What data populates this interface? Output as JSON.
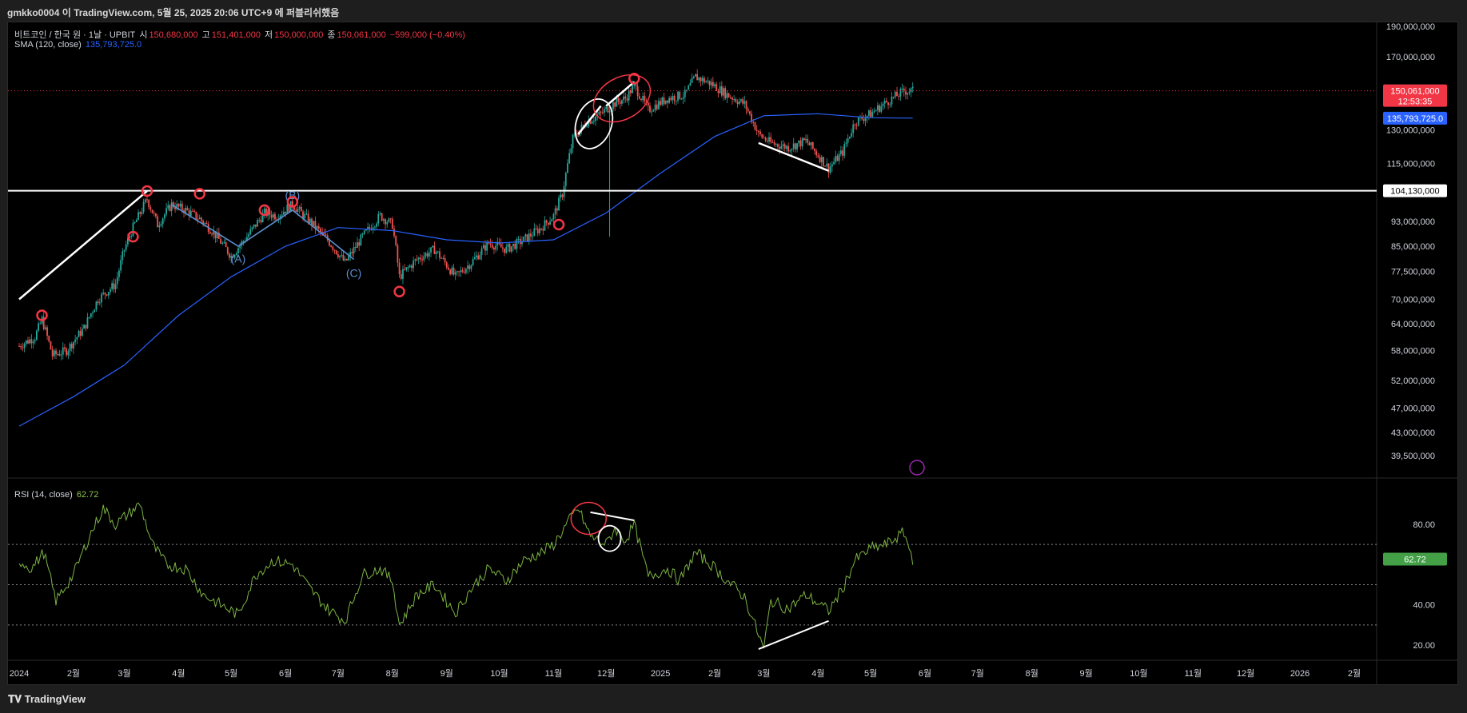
{
  "header": {
    "published_line": "gmkko0004 이 TradingView.com, 5월 25, 2025 20:06 UTC+9 에 퍼블리쉬했음"
  },
  "legend": {
    "symbol": "비트코인 / 한국 원 · 1날 · UPBIT",
    "open_label": "시",
    "open_value": "150,680,000",
    "high_label": "고",
    "high_value": "151,401,000",
    "low_label": "저",
    "low_value": "150,000,000",
    "close_label": "종",
    "close_value": "150,061,000",
    "change": "−599,000 (−0.40%)",
    "sma_label": "SMA (120, close)",
    "sma_value": "135,793,725.0",
    "rsi_label": "RSI (14, close)",
    "rsi_value": "62.72"
  },
  "price_badges": {
    "last_price": "150,061,000",
    "countdown": "12:53:35",
    "sma": "135,793,725.0",
    "hline": "104,130,000",
    "rsi": "62.72"
  },
  "footer": {
    "brand": "TradingView"
  },
  "colors": {
    "background": "#000000",
    "up_candle": "#26a69a",
    "down_candle": "#ef5350",
    "sma": "#2962ff",
    "rsi": "#7cb342",
    "marker_circles": "#f23645",
    "annotation_lines": "#ffffff",
    "wave_lines": "#5b8fd1"
  },
  "chart_data": [
    {
      "type": "candlestick",
      "title": "비트코인 / 한국 원 · 1날 · UPBIT",
      "y_scale": "log",
      "ylim": [
        37000000,
        200000000
      ],
      "y_ticks": [
        "190,000,000",
        "170,000,000",
        "130,000,000",
        "115,000,000",
        "93,000,000",
        "85,000,000",
        "77,500,000",
        "70,000,000",
        "64,000,000",
        "58,000,000",
        "52,000,000",
        "47,000,000",
        "43,000,000",
        "39,500,000"
      ],
      "x_ticks": [
        "2024",
        "2월",
        "3월",
        "4월",
        "5월",
        "6월",
        "7월",
        "8월",
        "9월",
        "10월",
        "11월",
        "12월",
        "2025",
        "2월",
        "3월",
        "4월",
        "5월",
        "6월",
        "7월",
        "8월",
        "9월",
        "10월",
        "11월",
        "12월",
        "2026",
        "2월"
      ],
      "price_path": [
        [
          "2024-01-01",
          59000000
        ],
        [
          "2024-01-10",
          61000000
        ],
        [
          "2024-01-14",
          65000000
        ],
        [
          "2024-01-20",
          57000000
        ],
        [
          "2024-01-28",
          58000000
        ],
        [
          "2024-02-07",
          63000000
        ],
        [
          "2024-02-15",
          70000000
        ],
        [
          "2024-02-25",
          74000000
        ],
        [
          "2024-03-01",
          84000000
        ],
        [
          "2024-03-06",
          91000000
        ],
        [
          "2024-03-14",
          101000000
        ],
        [
          "2024-03-20",
          92000000
        ],
        [
          "2024-03-28",
          99000000
        ],
        [
          "2024-04-05",
          97000000
        ],
        [
          "2024-04-13",
          94000000
        ],
        [
          "2024-04-20",
          90000000
        ],
        [
          "2024-05-01",
          82000000
        ],
        [
          "2024-05-10",
          88000000
        ],
        [
          "2024-05-20",
          96000000
        ],
        [
          "2024-05-27",
          95000000
        ],
        [
          "2024-06-05",
          99000000
        ],
        [
          "2024-06-15",
          93000000
        ],
        [
          "2024-06-25",
          87000000
        ],
        [
          "2024-07-05",
          80000000
        ],
        [
          "2024-07-15",
          88000000
        ],
        [
          "2024-07-25",
          95000000
        ],
        [
          "2024-08-01",
          92000000
        ],
        [
          "2024-08-05",
          76000000
        ],
        [
          "2024-08-15",
          81000000
        ],
        [
          "2024-08-25",
          84000000
        ],
        [
          "2024-09-06",
          76000000
        ],
        [
          "2024-09-15",
          80000000
        ],
        [
          "2024-09-25",
          86000000
        ],
        [
          "2024-10-05",
          84000000
        ],
        [
          "2024-10-15",
          87000000
        ],
        [
          "2024-10-25",
          91000000
        ],
        [
          "2024-11-01",
          95000000
        ],
        [
          "2024-11-06",
          103000000
        ],
        [
          "2024-11-12",
          126000000
        ],
        [
          "2024-11-20",
          134000000
        ],
        [
          "2024-11-28",
          138000000
        ],
        [
          "2024-12-05",
          143000000
        ],
        [
          "2024-12-12",
          146000000
        ],
        [
          "2024-12-17",
          153000000
        ],
        [
          "2024-12-25",
          140000000
        ],
        [
          "2025-01-05",
          146000000
        ],
        [
          "2025-01-15",
          148000000
        ],
        [
          "2025-01-21",
          158000000
        ],
        [
          "2025-01-30",
          154000000
        ],
        [
          "2025-02-08",
          148000000
        ],
        [
          "2025-02-18",
          143000000
        ],
        [
          "2025-02-26",
          128000000
        ],
        [
          "2025-03-05",
          124000000
        ],
        [
          "2025-03-15",
          122000000
        ],
        [
          "2025-03-25",
          125000000
        ],
        [
          "2025-04-07",
          113000000
        ],
        [
          "2025-04-15",
          120000000
        ],
        [
          "2025-04-22",
          134000000
        ],
        [
          "2025-05-01",
          138000000
        ],
        [
          "2025-05-10",
          144000000
        ],
        [
          "2025-05-20",
          150000000
        ],
        [
          "2025-05-25",
          150061000
        ]
      ],
      "sma_path": [
        [
          "2024-01-01",
          44000000
        ],
        [
          "2024-02-01",
          49000000
        ],
        [
          "2024-03-01",
          55000000
        ],
        [
          "2024-04-01",
          66000000
        ],
        [
          "2024-05-01",
          76000000
        ],
        [
          "2024-06-01",
          85000000
        ],
        [
          "2024-07-01",
          91000000
        ],
        [
          "2024-08-01",
          90000000
        ],
        [
          "2024-09-01",
          87000000
        ],
        [
          "2024-10-01",
          86000000
        ],
        [
          "2024-11-01",
          87000000
        ],
        [
          "2024-12-01",
          96000000
        ],
        [
          "2025-01-01",
          111000000
        ],
        [
          "2025-02-01",
          127000000
        ],
        [
          "2025-03-01",
          137000000
        ],
        [
          "2025-04-01",
          138000000
        ],
        [
          "2025-05-01",
          136000000
        ],
        [
          "2025-05-25",
          135793725
        ]
      ],
      "horizontal_line": 104130000
    },
    {
      "type": "line",
      "title": "RSI (14, close)",
      "ylim": [
        10,
        100
      ],
      "y_ticks": [
        "80.00",
        "40.00",
        "20.00"
      ],
      "bands": [
        70,
        50,
        30
      ],
      "rsi_path": [
        [
          "2024-01-01",
          62
        ],
        [
          "2024-01-08",
          58
        ],
        [
          "2024-01-15",
          66
        ],
        [
          "2024-01-22",
          42
        ],
        [
          "2024-02-01",
          55
        ],
        [
          "2024-02-10",
          74
        ],
        [
          "2024-02-18",
          88
        ],
        [
          "2024-02-25",
          80
        ],
        [
          "2024-03-03",
          85
        ],
        [
          "2024-03-10",
          90
        ],
        [
          "2024-03-17",
          70
        ],
        [
          "2024-03-25",
          60
        ],
        [
          "2024-04-05",
          58
        ],
        [
          "2024-04-15",
          45
        ],
        [
          "2024-04-25",
          40
        ],
        [
          "2024-05-05",
          35
        ],
        [
          "2024-05-15",
          55
        ],
        [
          "2024-05-25",
          62
        ],
        [
          "2024-06-05",
          60
        ],
        [
          "2024-06-15",
          48
        ],
        [
          "2024-06-25",
          38
        ],
        [
          "2024-07-05",
          32
        ],
        [
          "2024-07-15",
          55
        ],
        [
          "2024-07-25",
          58
        ],
        [
          "2024-08-01",
          52
        ],
        [
          "2024-08-05",
          30
        ],
        [
          "2024-08-15",
          45
        ],
        [
          "2024-08-25",
          50
        ],
        [
          "2024-09-06",
          36
        ],
        [
          "2024-09-15",
          48
        ],
        [
          "2024-09-25",
          58
        ],
        [
          "2024-10-05",
          52
        ],
        [
          "2024-10-15",
          62
        ],
        [
          "2024-10-25",
          66
        ],
        [
          "2024-11-01",
          70
        ],
        [
          "2024-11-10",
          82
        ],
        [
          "2024-11-15",
          88
        ],
        [
          "2024-11-22",
          74
        ],
        [
          "2024-12-01",
          70
        ],
        [
          "2024-12-06",
          78
        ],
        [
          "2024-12-12",
          72
        ],
        [
          "2024-12-17",
          80
        ],
        [
          "2024-12-25",
          54
        ],
        [
          "2025-01-05",
          58
        ],
        [
          "2025-01-12",
          52
        ],
        [
          "2025-01-21",
          66
        ],
        [
          "2025-01-30",
          60
        ],
        [
          "2025-02-08",
          52
        ],
        [
          "2025-02-18",
          44
        ],
        [
          "2025-02-26",
          25
        ],
        [
          "2025-03-01",
          18
        ],
        [
          "2025-03-05",
          42
        ],
        [
          "2025-03-15",
          38
        ],
        [
          "2025-03-25",
          45
        ],
        [
          "2025-04-07",
          37
        ],
        [
          "2025-04-15",
          48
        ],
        [
          "2025-04-22",
          62
        ],
        [
          "2025-05-01",
          68
        ],
        [
          "2025-05-10",
          70
        ],
        [
          "2025-05-20",
          76
        ],
        [
          "2025-05-25",
          62.72
        ]
      ]
    }
  ]
}
